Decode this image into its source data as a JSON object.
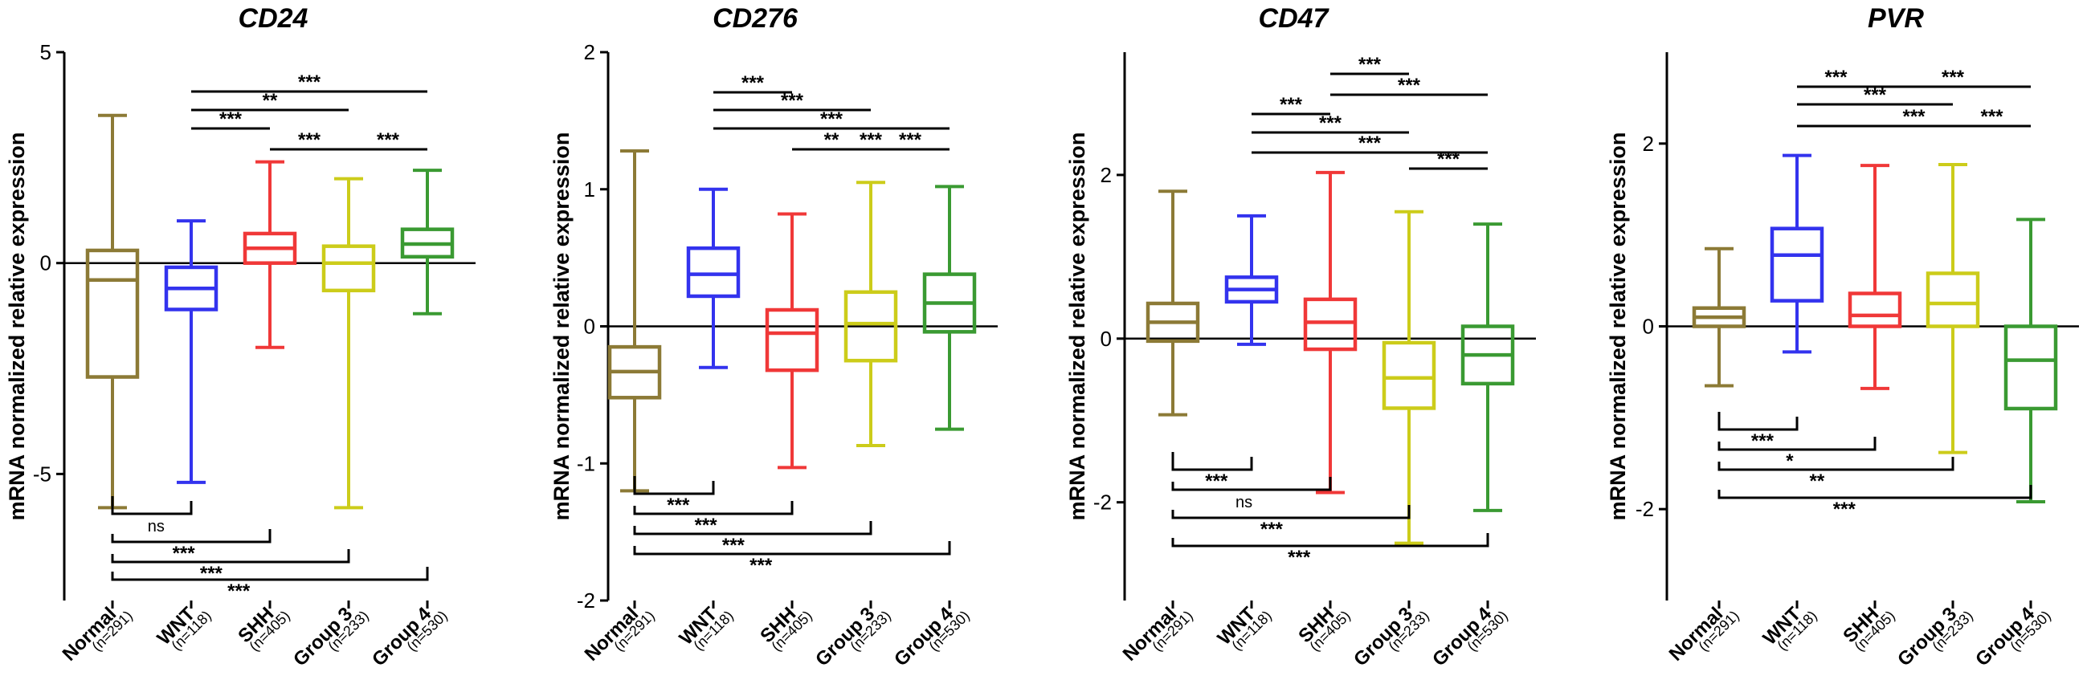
{
  "figure": {
    "ylabel": "mRNA normalized relative expression"
  },
  "chart_data": [
    {
      "type": "box",
      "title": "CD24",
      "ylabel": "mRNA normalized relative expression",
      "ylim": [
        -8,
        5
      ],
      "yticks": [
        5,
        0,
        -5
      ],
      "categories": [
        "Normal",
        "WNT",
        "SHH",
        "Group 3",
        "Group 4"
      ],
      "n_labels": [
        "(n=291)",
        "(n=118)",
        "(n=405)",
        "(n=233)",
        "(n=530)"
      ],
      "colors": [
        "#8c7a36",
        "#3333ee",
        "#f03838",
        "#cccc1a",
        "#3a9a32"
      ],
      "boxes": [
        {
          "min": -5.8,
          "q1": -2.7,
          "median": -0.4,
          "q3": 0.3,
          "max": 3.5
        },
        {
          "min": -5.2,
          "q1": -1.1,
          "median": -0.6,
          "q3": -0.1,
          "max": 1.0
        },
        {
          "min": -2.0,
          "q1": 0.0,
          "median": 0.35,
          "q3": 0.7,
          "max": 2.4
        },
        {
          "min": -5.8,
          "q1": -0.65,
          "median": 0.0,
          "q3": 0.4,
          "max": 2.0
        },
        {
          "min": -1.2,
          "q1": 0.15,
          "median": 0.45,
          "q3": 0.8,
          "max": 2.2
        }
      ],
      "comparisons": [
        {
          "from": 1,
          "to": 4,
          "label": "***",
          "side": "top"
        },
        {
          "from": 1,
          "to": 3,
          "label": "**",
          "side": "top"
        },
        {
          "from": 1,
          "to": 2,
          "label": "***",
          "side": "top"
        },
        {
          "from": 2,
          "to": 3,
          "label": "***",
          "side": "top"
        },
        {
          "from": 3,
          "to": 4,
          "label": "***",
          "side": "top"
        },
        {
          "from": 0,
          "to": 1,
          "label": "ns",
          "side": "bottom"
        },
        {
          "from": 0,
          "to": 2,
          "label": "***",
          "side": "bottom"
        },
        {
          "from": 0,
          "to": 3,
          "label": "***",
          "side": "bottom"
        },
        {
          "from": 0,
          "to": 4,
          "label": "***",
          "side": "bottom"
        }
      ]
    },
    {
      "type": "box",
      "title": "CD276",
      "ylabel": "mRNA normalized relative expression",
      "ylim": [
        -2,
        2
      ],
      "yticks": [
        2,
        1,
        0,
        -1,
        -2
      ],
      "categories": [
        "Normal",
        "WNT",
        "SHH",
        "Group 3",
        "Group 4"
      ],
      "n_labels": [
        "(n=291)",
        "(n=118)",
        "(n=405)",
        "(n=233)",
        "(n=530)"
      ],
      "colors": [
        "#8c7a36",
        "#3333ee",
        "#f03838",
        "#cccc1a",
        "#3a9a32"
      ],
      "boxes": [
        {
          "min": -1.2,
          "q1": -0.52,
          "median": -0.33,
          "q3": -0.15,
          "max": 1.28
        },
        {
          "min": -0.3,
          "q1": 0.22,
          "median": 0.38,
          "q3": 0.57,
          "max": 1.0
        },
        {
          "min": -1.03,
          "q1": -0.32,
          "median": -0.05,
          "q3": 0.12,
          "max": 0.82
        },
        {
          "min": -0.87,
          "q1": -0.25,
          "median": 0.02,
          "q3": 0.25,
          "max": 1.05
        },
        {
          "min": -0.75,
          "q1": -0.04,
          "median": 0.17,
          "q3": 0.38,
          "max": 1.02
        }
      ],
      "comparisons": [
        {
          "from": 1,
          "to": 2,
          "label": "***",
          "side": "top"
        },
        {
          "from": 1,
          "to": 3,
          "label": "***",
          "side": "top"
        },
        {
          "from": 1,
          "to": 4,
          "label": "***",
          "side": "top"
        },
        {
          "from": 2,
          "to": 3,
          "label": "**",
          "side": "top"
        },
        {
          "from": 3,
          "to": 4,
          "label": "***",
          "side": "top"
        },
        {
          "from": 2,
          "to": 4,
          "label": "***",
          "side": "top"
        },
        {
          "from": 0,
          "to": 1,
          "label": "***",
          "side": "bottom"
        },
        {
          "from": 0,
          "to": 2,
          "label": "***",
          "side": "bottom"
        },
        {
          "from": 0,
          "to": 3,
          "label": "***",
          "side": "bottom"
        },
        {
          "from": 0,
          "to": 4,
          "label": "***",
          "side": "bottom"
        }
      ]
    },
    {
      "type": "box",
      "title": "CD47",
      "ylabel": "mRNA normalized relative expression",
      "ylim": [
        -3.2,
        3.5
      ],
      "yticks": [
        2,
        0,
        -2
      ],
      "categories": [
        "Normal",
        "WNT",
        "SHH",
        "Group 3",
        "Group 4"
      ],
      "n_labels": [
        "(n=291)",
        "(n=118)",
        "(n=405)",
        "(n=233)",
        "(n=530)"
      ],
      "colors": [
        "#8c7a36",
        "#3333ee",
        "#f03838",
        "#cccc1a",
        "#3a9a32"
      ],
      "boxes": [
        {
          "min": -0.93,
          "q1": -0.03,
          "median": 0.2,
          "q3": 0.43,
          "max": 1.8
        },
        {
          "min": -0.07,
          "q1": 0.45,
          "median": 0.6,
          "q3": 0.75,
          "max": 1.5
        },
        {
          "min": -1.88,
          "q1": -0.13,
          "median": 0.2,
          "q3": 0.48,
          "max": 2.03
        },
        {
          "min": -2.5,
          "q1": -0.85,
          "median": -0.48,
          "q3": -0.05,
          "max": 1.55
        },
        {
          "min": -2.1,
          "q1": -0.55,
          "median": -0.2,
          "q3": 0.15,
          "max": 1.4
        }
      ],
      "comparisons": [
        {
          "from": 2,
          "to": 3,
          "label": "***",
          "side": "top"
        },
        {
          "from": 2,
          "to": 4,
          "label": "***",
          "side": "top"
        },
        {
          "from": 1,
          "to": 2,
          "label": "***",
          "side": "top"
        },
        {
          "from": 1,
          "to": 3,
          "label": "***",
          "side": "top"
        },
        {
          "from": 1,
          "to": 4,
          "label": "***",
          "side": "top"
        },
        {
          "from": 3,
          "to": 4,
          "label": "***",
          "side": "top"
        },
        {
          "from": 0,
          "to": 1,
          "label": "***",
          "side": "bottom"
        },
        {
          "from": 0,
          "to": 2,
          "label": "ns",
          "side": "bottom"
        },
        {
          "from": 0,
          "to": 3,
          "label": "***",
          "side": "bottom"
        },
        {
          "from": 0,
          "to": 4,
          "label": "***",
          "side": "bottom"
        }
      ]
    },
    {
      "type": "box",
      "title": "PVR",
      "ylabel": "mRNA normalized relative expression",
      "ylim": [
        -3,
        3
      ],
      "yticks": [
        2,
        0,
        -2
      ],
      "categories": [
        "Normal",
        "WNT",
        "SHH",
        "Group 3",
        "Group 4"
      ],
      "n_labels": [
        "(n=291)",
        "(n=118)",
        "(n=405)",
        "(n=233)",
        "(n=530)"
      ],
      "colors": [
        "#8c7a36",
        "#3333ee",
        "#f03838",
        "#cccc1a",
        "#3a9a32"
      ],
      "boxes": [
        {
          "min": -0.65,
          "q1": 0.0,
          "median": 0.1,
          "q3": 0.2,
          "max": 0.85
        },
        {
          "min": -0.28,
          "q1": 0.28,
          "median": 0.78,
          "q3": 1.07,
          "max": 1.87
        },
        {
          "min": -0.68,
          "q1": 0.0,
          "median": 0.12,
          "q3": 0.36,
          "max": 1.76
        },
        {
          "min": -1.38,
          "q1": 0.0,
          "median": 0.25,
          "q3": 0.58,
          "max": 1.77
        },
        {
          "min": -1.92,
          "q1": -0.9,
          "median": -0.37,
          "q3": 0.0,
          "max": 1.17
        }
      ],
      "comparisons": [
        {
          "from": 1,
          "to": 2,
          "label": "***",
          "side": "top"
        },
        {
          "from": 2,
          "to": 4,
          "label": "***",
          "side": "top"
        },
        {
          "from": 1,
          "to": 3,
          "label": "***",
          "side": "top"
        },
        {
          "from": 1,
          "to": 4,
          "label": "***",
          "side": "top"
        },
        {
          "from": 3,
          "to": 4,
          "label": "***",
          "side": "top"
        },
        {
          "from": 0,
          "to": 1,
          "label": "***",
          "side": "bottom"
        },
        {
          "from": 0,
          "to": 2,
          "label": "*",
          "side": "bottom"
        },
        {
          "from": 0,
          "to": 3,
          "label": "**",
          "side": "bottom"
        },
        {
          "from": 0,
          "to": 4,
          "label": "***",
          "side": "bottom"
        }
      ]
    }
  ]
}
